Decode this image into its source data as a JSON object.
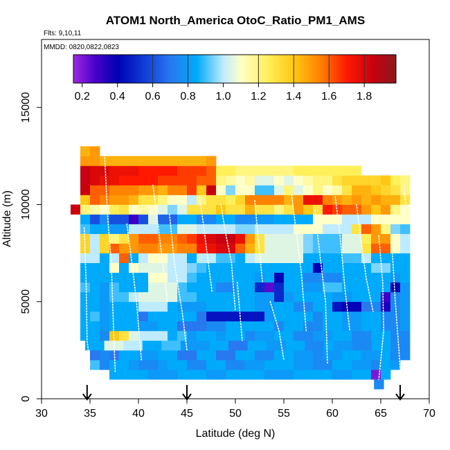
{
  "chart_data": {
    "type": "heatmap",
    "title": "ATOM1 North_America OtoC_Ratio_PM1_AMS",
    "flights_label": "Flts: 9,10,11",
    "dates_label": "MMDD: 0820,0822,0823",
    "xlabel": "Latitude (deg N)",
    "ylabel": "Altitude (m)",
    "xlim": [
      30,
      70
    ],
    "ylim": [
      0,
      18500
    ],
    "xticks": [
      30,
      35,
      40,
      45,
      50,
      55,
      60,
      65,
      70
    ],
    "yticks": [
      0,
      5000,
      10000,
      15000
    ],
    "xtick_labels": [
      "30",
      "35",
      "40",
      "45",
      "50",
      "55",
      "60",
      "65",
      "70"
    ],
    "ytick_labels": [
      "0",
      "5000",
      "10000",
      "15000"
    ],
    "colorbar": {
      "range": [
        0.15,
        1.98
      ],
      "ticks": [
        0.2,
        0.4,
        0.6,
        0.8,
        1.0,
        1.2,
        1.4,
        1.6,
        1.8
      ],
      "tick_labels": [
        "0.2",
        "0.4",
        "0.6",
        "0.8",
        "1.0",
        "1.2",
        "1.4",
        "1.6",
        "1.8"
      ],
      "divisions": [
        0.6,
        0.8,
        1.2,
        1.4,
        1.6,
        1.8
      ]
    },
    "arrows_latitude": [
      34.7,
      45.0,
      67.0
    ],
    "bin_width_deg": 1,
    "bin_height_m": 500,
    "layers": [
      {
        "alt_bottom": 500,
        "lat_start": 64.3,
        "lat_end": 65.3,
        "values": [
          0.75
        ]
      },
      {
        "alt_bottom": 1000,
        "lat_start": 37.0,
        "lat_end": 64.0,
        "values": [
          0.85,
          0.85,
          0.85,
          0.85,
          0.8,
          0.8,
          0.8,
          0.85,
          0.85,
          0.85,
          0.8,
          0.8,
          0.85,
          0.85,
          0.85,
          0.85,
          0.8,
          0.8,
          0.8,
          0.85,
          0.85,
          0.85,
          0.85,
          0.8,
          0.8,
          0.85,
          0.85
        ]
      },
      {
        "alt_bottom": 1000,
        "lat_start": 64.0,
        "lat_end": 66.0,
        "values": [
          0.2,
          0.85
        ]
      },
      {
        "alt_bottom": 1500,
        "lat_start": 35.0,
        "lat_end": 67.0,
        "values": [
          0.9,
          0.75,
          0.85,
          0.85,
          0.8,
          0.75,
          0.75,
          0.8,
          0.85,
          0.85,
          0.75,
          0.75,
          0.85,
          0.85,
          0.75,
          0.75,
          0.8,
          0.8,
          0.85,
          0.85,
          0.85,
          0.8,
          0.8,
          0.75,
          0.75,
          0.85,
          0.85,
          0.8,
          0.8,
          0.75,
          0.85,
          0.8
        ]
      },
      {
        "alt_bottom": 2000,
        "lat_start": 35.0,
        "lat_end": 68.0,
        "values": [
          0.7,
          0.75,
          0.7,
          0.85,
          0.85,
          0.8,
          0.8,
          0.85,
          0.85,
          0.7,
          0.7,
          0.85,
          0.85,
          0.7,
          0.7,
          0.85,
          0.85,
          0.75,
          0.75,
          0.85,
          0.85,
          0.8,
          0.8,
          0.75,
          0.8,
          0.8,
          0.85,
          0.85,
          0.8,
          0.8,
          0.85,
          0.75,
          0.75
        ]
      },
      {
        "alt_bottom": 2500,
        "lat_start": 34.5,
        "lat_end": 68.0,
        "values": [
          0.85,
          0.85,
          1.05,
          1.05,
          1.0,
          1.0,
          0.85,
          0.85,
          0.9,
          0.9,
          0.8,
          0.8,
          0.8,
          0.85,
          0.85,
          0.7,
          0.7,
          0.85,
          0.85,
          0.8,
          0.8,
          0.85,
          0.85,
          0.75,
          0.75,
          0.85,
          0.8,
          0.8,
          0.75,
          0.75,
          0.85,
          0.85,
          0.75,
          0.75
        ]
      },
      {
        "alt_bottom": 3000,
        "lat_start": 34.0,
        "lat_end": 68.0,
        "values": [
          0.85,
          0.85,
          0.75,
          1.4,
          1.3,
          1.05,
          1.0,
          1.0,
          1.0,
          0.85,
          0.9,
          0.8,
          0.85,
          0.85,
          0.8,
          0.85,
          0.85,
          0.75,
          0.8,
          0.8,
          0.85,
          0.85,
          0.75,
          0.75,
          0.8,
          0.8,
          0.85,
          0.85,
          0.75,
          0.75,
          0.85,
          0.85,
          0.75,
          0.75
        ]
      },
      {
        "alt_bottom": 3500,
        "lat_start": 34.0,
        "lat_end": 68.0,
        "values": [
          0.85,
          0.85,
          0.8,
          0.85,
          0.85,
          0.85,
          0.8,
          0.8,
          0.85,
          0.85,
          0.7,
          0.7,
          0.7,
          0.75,
          0.75,
          0.85,
          0.85,
          0.85,
          0.85,
          0.85,
          0.75,
          0.85,
          0.85,
          0.75,
          0.75,
          0.85,
          0.85,
          0.8,
          0.8,
          0.85,
          0.85,
          0.75,
          0.75,
          0.8
        ]
      },
      {
        "alt_bottom": 4000,
        "lat_start": 34.0,
        "lat_end": 68.0,
        "values": [
          0.85,
          0.9,
          0.8,
          0.85,
          0.85,
          0.85,
          0.7,
          0.85,
          0.85,
          0.85,
          0.85,
          0.85,
          0.7,
          0.45,
          0.45,
          0.45,
          0.45,
          0.45,
          0.45,
          0.8,
          0.85,
          0.85,
          0.85,
          0.85,
          0.75,
          0.85,
          0.85,
          0.8,
          0.8,
          0.85,
          0.85,
          0.75,
          0.75,
          0.8
        ]
      },
      {
        "alt_bottom": 4500,
        "lat_start": 34.0,
        "lat_end": 68.0,
        "values": [
          0.85,
          0.85,
          0.8,
          0.85,
          0.85,
          0.85,
          1.0,
          1.0,
          1.0,
          0.85,
          0.8,
          0.8,
          0.8,
          0.85,
          0.85,
          0.85,
          0.85,
          0.85,
          0.8,
          0.8,
          0.85,
          0.85,
          0.75,
          0.75,
          0.85,
          0.85,
          0.45,
          0.4,
          0.4,
          0.7,
          0.75,
          0.35,
          0.75,
          0.8
        ]
      },
      {
        "alt_bottom": 5000,
        "lat_start": 34.0,
        "lat_end": 68.0,
        "values": [
          0.85,
          0.85,
          0.8,
          0.9,
          0.9,
          1.0,
          1.05,
          1.05,
          1.05,
          1.05,
          0.9,
          0.9,
          0.85,
          0.85,
          0.85,
          0.85,
          0.85,
          0.85,
          0.8,
          0.8,
          0.5,
          0.8,
          0.85,
          0.85,
          0.85,
          0.85,
          0.8,
          0.8,
          0.85,
          0.85,
          0.85,
          0.3,
          0.75,
          0.8
        ]
      },
      {
        "alt_bottom": 5500,
        "lat_start": 34.0,
        "lat_end": 68.0,
        "values": [
          0.9,
          0.85,
          0.8,
          0.9,
          0.85,
          0.85,
          0.85,
          1.05,
          1.05,
          1.05,
          0.9,
          0.85,
          0.85,
          0.85,
          0.75,
          0.75,
          0.85,
          0.85,
          0.5,
          0.25,
          0.5,
          0.85,
          0.85,
          0.8,
          0.8,
          0.9,
          0.9,
          0.85,
          0.85,
          0.85,
          0.85,
          0.85,
          0.4,
          0.8
        ]
      },
      {
        "alt_bottom": 6000,
        "lat_start": 34.0,
        "lat_end": 68.0,
        "values": [
          0.85,
          0.85,
          0.85,
          0.85,
          0.85,
          0.85,
          0.85,
          1.1,
          1.1,
          1.0,
          1.0,
          0.9,
          0.85,
          0.85,
          0.85,
          0.85,
          0.85,
          0.85,
          0.8,
          0.85,
          0.4,
          0.85,
          0.85,
          0.75,
          0.75,
          0.75,
          0.75,
          0.85,
          0.85,
          0.85,
          0.85,
          0.85,
          0.8,
          0.85
        ]
      },
      {
        "alt_bottom": 6500,
        "lat_start": 34.0,
        "lat_end": 68.0,
        "values": [
          0.85,
          0.85,
          0.85,
          1.1,
          0.85,
          1.1,
          1.05,
          1.05,
          1.05,
          1.0,
          1.0,
          0.95,
          0.9,
          0.85,
          0.85,
          0.85,
          0.85,
          0.85,
          0.85,
          0.85,
          0.85,
          0.85,
          0.85,
          0.85,
          0.4,
          0.85,
          0.85,
          0.85,
          0.85,
          0.85,
          0.95,
          0.95,
          0.85,
          0.85
        ]
      },
      {
        "alt_bottom": 7000,
        "lat_start": 34.0,
        "lat_end": 68.0,
        "values": [
          1.0,
          1.0,
          0.85,
          1.0,
          1.6,
          0.85,
          1.0,
          1.1,
          1.1,
          1.0,
          1.0,
          0.85,
          1.0,
          1.0,
          0.9,
          0.9,
          0.85,
          1.0,
          1.05,
          1.05,
          1.05,
          1.05,
          1.05,
          0.85,
          0.85,
          0.85,
          0.85,
          0.9,
          0.9,
          1.0,
          0.85,
          0.85,
          0.85,
          0.85
        ]
      },
      {
        "alt_bottom": 7500,
        "lat_start": 34.0,
        "lat_end": 68.0,
        "values": [
          1.35,
          1.0,
          1.35,
          1.6,
          1.5,
          1.5,
          1.55,
          1.55,
          1.5,
          1.5,
          1.55,
          1.55,
          1.7,
          1.75,
          1.8,
          1.8,
          1.6,
          1.45,
          1.3,
          1.05,
          1.05,
          1.05,
          1.05,
          0.95,
          0.9,
          0.9,
          0.9,
          1.05,
          1.05,
          1.3,
          1.6,
          1.6,
          1.1,
          1.0
        ]
      },
      {
        "alt_bottom": 8000,
        "lat_start": 34.0,
        "lat_end": 68.0,
        "values": [
          1.35,
          1.0,
          1.35,
          1.2,
          1.3,
          1.5,
          1.6,
          1.6,
          1.55,
          1.55,
          1.6,
          1.65,
          1.75,
          1.8,
          1.85,
          1.85,
          1.75,
          1.5,
          1.3,
          1.05,
          1.05,
          1.05,
          1.05,
          0.95,
          0.9,
          0.9,
          0.9,
          1.05,
          1.05,
          1.25,
          1.5,
          1.5,
          1.1,
          1.0
        ]
      },
      {
        "alt_bottom": 8500,
        "lat_start": 34.0,
        "lat_end": 68.0,
        "values": [
          0.9,
          0.85,
          0.85,
          0.8,
          0.8,
          1.0,
          1.0,
          1.0,
          0.9,
          0.9,
          1.05,
          1.05,
          1.0,
          1.0,
          1.0,
          1.0,
          0.95,
          0.95,
          1.0,
          1.0,
          1.0,
          1.0,
          1.1,
          1.1,
          1.1,
          1.0,
          1.0,
          1.0,
          1.3,
          1.6,
          1.5,
          1.2,
          0.95,
          0.9
        ]
      },
      {
        "alt_bottom": 9000,
        "lat_start": 34.0,
        "lat_end": 68.0,
        "values": [
          0.85,
          0.6,
          0.75,
          0.6,
          0.6,
          0.3,
          0.6,
          1.05,
          0.65,
          0.65,
          0.85,
          0.85,
          0.75,
          0.75,
          0.85,
          0.85,
          0.75,
          0.75,
          0.8,
          0.8,
          0.85,
          0.85,
          0.85,
          0.85,
          1.1,
          1.1,
          1.1,
          1.0,
          1.0,
          1.0,
          1.1,
          1.1,
          1.1,
          1.1
        ]
      },
      {
        "alt_bottom": 9500,
        "lat_start": 33.0,
        "lat_end": 68.0,
        "values": [
          1.85,
          1.2,
          1.15,
          1.1,
          1.25,
          1.3,
          1.1,
          1.15,
          1.1,
          1.05,
          0.95,
          1.05,
          1.3,
          1.3,
          1.3,
          1.4,
          1.3,
          1.3,
          1.45,
          1.3,
          1.3,
          1.2,
          1.3,
          1.5,
          1.4,
          1.3,
          1.7,
          1.65,
          1.6,
          1.6,
          1.5,
          1.4,
          1.5,
          1.2,
          1.1
        ]
      },
      {
        "alt_bottom": 10000,
        "lat_start": 34.0,
        "lat_end": 68.0,
        "values": [
          1.4,
          1.6,
          1.55,
          1.5,
          1.5,
          1.45,
          1.3,
          1.3,
          1.2,
          1.1,
          1.1,
          1.0,
          1.2,
          1.3,
          1.3,
          1.25,
          1.35,
          1.55,
          1.55,
          1.55,
          1.55,
          1.45,
          1.5,
          1.75,
          1.75,
          1.55,
          1.5,
          1.45,
          1.5,
          1.45,
          1.5,
          1.45,
          1.45,
          1.3
        ]
      },
      {
        "alt_bottom": 10500,
        "lat_start": 34.0,
        "lat_end": 68.0,
        "values": [
          1.85,
          1.6,
          1.6,
          1.55,
          1.55,
          1.55,
          1.5,
          1.5,
          1.45,
          1.55,
          1.55,
          1.65,
          1.4,
          1.85,
          1.1,
          0.95,
          1.1,
          1.1,
          0.9,
          0.9,
          1.05,
          1.2,
          1.05,
          1.1,
          1.2,
          1.1,
          1.15,
          1.3,
          1.45,
          1.45,
          1.4,
          1.35,
          1.3,
          1.2
        ]
      },
      {
        "alt_bottom": 11000,
        "lat_start": 34.0,
        "lat_end": 68.0,
        "values": [
          1.85,
          1.8,
          1.75,
          1.75,
          1.7,
          1.7,
          1.7,
          1.7,
          1.65,
          1.65,
          1.65,
          1.65,
          1.6,
          1.6,
          1.2,
          1.15,
          1.1,
          1.15,
          1.05,
          1.05,
          1.1,
          1.05,
          1.1,
          1.15,
          1.2,
          1.2,
          1.3,
          1.35,
          1.35,
          1.35,
          1.35,
          1.4,
          1.25,
          1.2
        ]
      },
      {
        "alt_bottom": 11500,
        "lat_start": 34.0,
        "lat_end": 63.0,
        "values": [
          1.85,
          1.8,
          1.8,
          1.75,
          1.75,
          1.75,
          1.7,
          1.7,
          1.7,
          1.7,
          1.65,
          1.65,
          1.65,
          1.6,
          1.25,
          1.25,
          1.2,
          1.2,
          1.2,
          1.2,
          1.2,
          1.2,
          1.25,
          1.25,
          1.25,
          1.25,
          1.25,
          1.25,
          1.25
        ]
      },
      {
        "alt_bottom": 12000,
        "lat_start": 34.0,
        "lat_end": 48.0,
        "values": [
          1.5,
          1.5,
          1.45,
          1.45,
          1.45,
          1.45,
          1.45,
          1.45,
          1.45,
          1.45,
          1.45,
          1.45,
          1.45,
          1.5
        ]
      },
      {
        "alt_bottom": 12500,
        "lat_start": 34.0,
        "lat_end": 36.0,
        "values": [
          1.45,
          1.5
        ]
      }
    ]
  }
}
